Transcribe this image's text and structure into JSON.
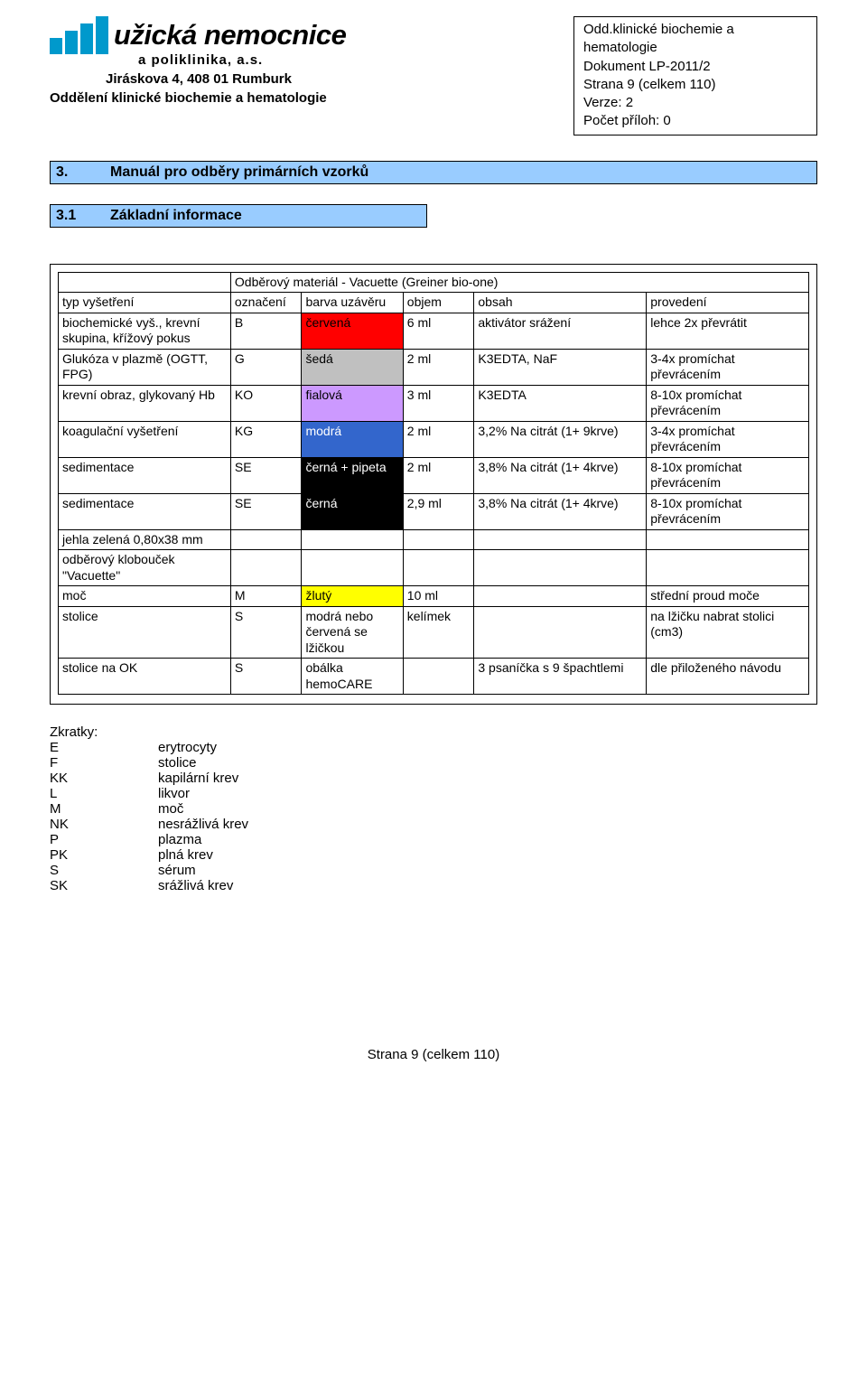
{
  "logo": {
    "name": "užická nemocnice",
    "sub": "a  poliklinika,  a.s.",
    "address": "Jiráskova 4, 408 01 Rumburk",
    "dept": "Oddělení klinické biochemie a hematologie"
  },
  "infobox": {
    "l1": "Odd.klinické biochemie a",
    "l2": "hematologie",
    "l3": "Dokument LP-2011/2",
    "l4": "Strana 9 (celkem 110)",
    "l5": "Verze: 2",
    "l6": "Počet příloh: 0"
  },
  "section": {
    "num": "3.",
    "title": "Manuál pro odběry primárních vzorků"
  },
  "subsection": {
    "num": "3.1",
    "title": "Základní informace"
  },
  "tableCaption": "Odběrový materiál - Vacuette (Greiner bio-one)",
  "headers": {
    "typ": "typ vyšetření",
    "ozn": "označení",
    "barva": "barva uzávěru",
    "objem": "objem",
    "obsah": "obsah",
    "prov": "provedení"
  },
  "rows": [
    {
      "typ": "biochemické vyš., krevní skupina, křížový pokus",
      "ozn": "B",
      "barva": "červená",
      "barva_bg": "#ff0000",
      "barva_color": "#000000",
      "objem": "6 ml",
      "obsah": "aktivátor srážení",
      "prov": "lehce 2x převrátit"
    },
    {
      "typ": "Glukóza v plazmě (OGTT, FPG)",
      "ozn": "G",
      "barva": "šedá",
      "barva_bg": "#c0c0c0",
      "barva_color": "#000000",
      "objem": "2 ml",
      "obsah": "K3EDTA, NaF",
      "prov": "3-4x promíchat převrácením"
    },
    {
      "typ": "krevní obraz, glykovaný Hb",
      "ozn": "KO",
      "barva": "fialová",
      "barva_bg": "#cc99ff",
      "barva_color": "#000000",
      "objem": "3 ml",
      "obsah": "K3EDTA",
      "prov": "8-10x promíchat převrácením"
    },
    {
      "typ": "koagulační vyšetření",
      "ozn": "KG",
      "barva": "modrá",
      "barva_bg": "#3366cc",
      "barva_color": "#ffffff",
      "objem": "2 ml",
      "obsah": "3,2% Na citrát (1+ 9krve)",
      "prov": "3-4x promíchat převrácením"
    },
    {
      "typ": "sedimentace",
      "ozn": "SE",
      "barva": "černá + pipeta",
      "barva_bg": "#000000",
      "barva_color": "#ffffff",
      "objem": "2 ml",
      "obsah": "3,8% Na citrát (1+ 4krve)",
      "prov": "8-10x promíchat převrácením"
    },
    {
      "typ": "sedimentace",
      "ozn": "SE",
      "barva": "černá",
      "barva_bg": "#000000",
      "barva_color": "#ffffff",
      "objem": "2,9 ml",
      "obsah": "3,8% Na citrát (1+ 4krve)",
      "prov": "8-10x promíchat převrácením"
    },
    {
      "typ": "jehla zelená 0,80x38 mm",
      "ozn": "",
      "barva": "",
      "barva_bg": "#ffffff",
      "barva_color": "#000000",
      "objem": "",
      "obsah": "",
      "prov": ""
    },
    {
      "typ": "odběrový klobouček \"Vacuette\"",
      "ozn": "",
      "barva": "",
      "barva_bg": "#ffffff",
      "barva_color": "#000000",
      "objem": "",
      "obsah": "",
      "prov": ""
    },
    {
      "typ": "moč",
      "ozn": "M",
      "barva": "žlutý",
      "barva_bg": "#ffff00",
      "barva_color": "#000000",
      "objem": "10 ml",
      "obsah": "",
      "prov": "střední proud moče"
    },
    {
      "typ": "stolice",
      "ozn": "S",
      "barva": "modrá nebo červená se lžičkou",
      "barva_bg": "#ffffff",
      "barva_color": "#000000",
      "objem": "kelímek",
      "obsah": "",
      "prov": "na lžičku nabrat stolici (cm3)"
    },
    {
      "typ": "stolice na OK",
      "ozn": "S",
      "barva": "obálka hemoCARE",
      "barva_bg": "#ffffff",
      "barva_color": "#000000",
      "objem": "",
      "obsah": "3 psaníčka s 9 špachtlemi",
      "prov": "dle přiloženého návodu"
    }
  ],
  "zkratky": {
    "title": "Zkratky:",
    "items": [
      {
        "k": "E",
        "v": "erytrocyty"
      },
      {
        "k": "F",
        "v": "stolice"
      },
      {
        "k": "KK",
        "v": "kapilární krev"
      },
      {
        "k": "L",
        "v": "likvor"
      },
      {
        "k": "M",
        "v": "moč"
      },
      {
        "k": "NK",
        "v": "nesrážlivá krev"
      },
      {
        "k": "P",
        "v": "plazma"
      },
      {
        "k": "PK",
        "v": "plná krev"
      },
      {
        "k": "S",
        "v": "sérum"
      },
      {
        "k": "SK",
        "v": "srážlivá krev"
      }
    ]
  },
  "footer": "Strana 9 (celkem 110)"
}
